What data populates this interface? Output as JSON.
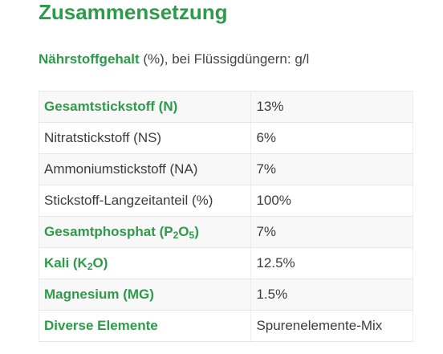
{
  "section": {
    "title": "Zusammensetzung",
    "subtitle_accent": "Nährstoffgehalt",
    "subtitle_rest": " (%), bei Flüssigdüngern: g/l"
  },
  "colors": {
    "accent": "#2e9a4a",
    "text": "#3d3d3d",
    "row_alt": "#f8f8f8"
  },
  "table": {
    "rows": [
      {
        "label": "Gesamtstickstoff (N)",
        "value": "13%",
        "emphasis": true
      },
      {
        "label": "Nitratstickstoff (NS)",
        "value": "6%",
        "emphasis": false
      },
      {
        "label": "Ammoniumstickstoff (NA)",
        "value": "7%",
        "emphasis": false
      },
      {
        "label": "Stickstoff-Langzeitanteil (%)",
        "value": "100%",
        "emphasis": false
      },
      {
        "label_parts": [
          "Gesamtphosphat (P",
          "2",
          "O",
          "5",
          ")"
        ],
        "value": "7%",
        "emphasis": true
      },
      {
        "label_parts": [
          "Kali (K",
          "2",
          "O)"
        ],
        "value": "12.5%",
        "emphasis": true
      },
      {
        "label": "Magnesium (MG)",
        "value": "1.5%",
        "emphasis": true
      },
      {
        "label": "Diverse Elemente",
        "value": "Spurenelemente-Mix",
        "emphasis": true
      }
    ]
  }
}
